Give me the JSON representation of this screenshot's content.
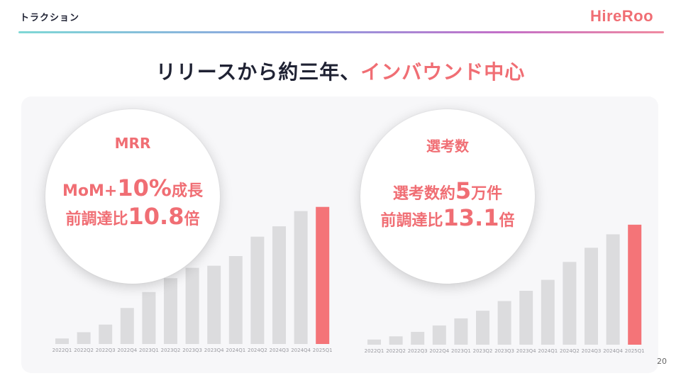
{
  "header": {
    "section_label": "トラクション",
    "brand": "HireRoo"
  },
  "headline": {
    "main": "リリースから約三年、",
    "accent": "インバウンド中心"
  },
  "mrr": {
    "title": "MRR",
    "line1_pre": "MoM+",
    "line1_big": "10%",
    "line1_post": "成長",
    "line2_pre": "前調達比",
    "line2_big": "10.8",
    "line2_post": "倍"
  },
  "selection": {
    "title": "選考数",
    "line1_pre": "選考数約",
    "line1_big": "5",
    "line1_post": "万件",
    "line2_pre": "前調達比",
    "line2_big": "13.1",
    "line2_post": "倍"
  },
  "page_number": "20",
  "colors": {
    "accent": "#f06e74",
    "bar_gray": "#dcdcde",
    "bar_highlight": "#f47478"
  },
  "chart_data": [
    {
      "type": "bar",
      "categories": [
        "2022Q1",
        "2022Q2",
        "2022Q3",
        "2022Q4",
        "2023Q1",
        "2023Q2",
        "2023Q3",
        "2023Q4",
        "2024Q1",
        "2024Q2",
        "2024Q3",
        "2024Q4",
        "2025Q1"
      ],
      "values": [
        8,
        17,
        28,
        52,
        75,
        95,
        110,
        113,
        127,
        155,
        170,
        192,
        198
      ],
      "highlight_index": 12,
      "ylim": [
        0,
        210
      ]
    },
    {
      "type": "bar",
      "categories": [
        "2022Q1",
        "2022Q2",
        "2022Q3",
        "2022Q4",
        "2023Q1",
        "2023Q2",
        "2023Q3",
        "2023Q4",
        "2024Q1",
        "2024Q2",
        "2024Q3",
        "2024Q4",
        "2025Q1"
      ],
      "values": [
        8,
        13,
        20,
        30,
        41,
        53,
        68,
        84,
        101,
        129,
        151,
        172,
        187
      ],
      "highlight_index": 12,
      "ylim": [
        0,
        210
      ]
    }
  ]
}
